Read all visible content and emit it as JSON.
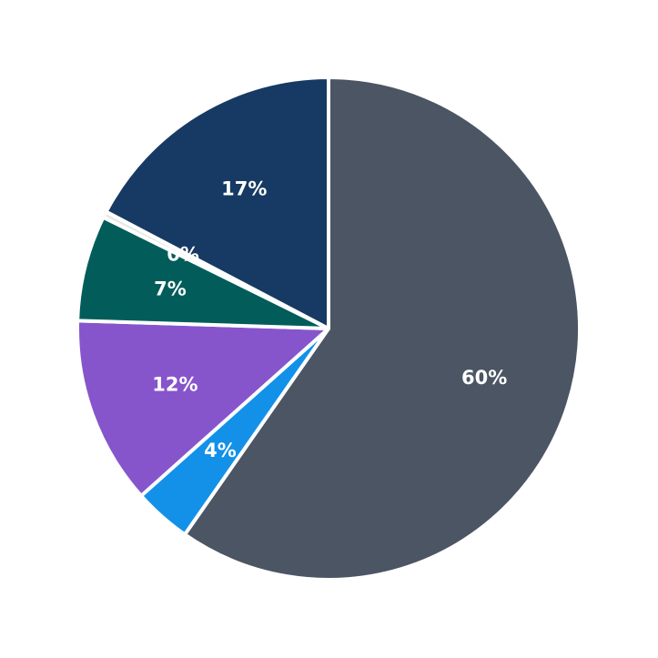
{
  "chart_data": {
    "type": "pie",
    "start": "top",
    "direction": "clockwise",
    "slices": [
      {
        "value": 59.7,
        "label": "60%",
        "color": "#4b5563"
      },
      {
        "value": 3.7,
        "label": "4%",
        "color": "#1391e8"
      },
      {
        "value": 12.1,
        "label": "12%",
        "color": "#8655cc"
      },
      {
        "value": 6.8,
        "label": "7%",
        "color": "#025d5a"
      },
      {
        "value": 0.4,
        "label": "0%",
        "color": "#e8e8e8"
      },
      {
        "value": 17.3,
        "label": "17%",
        "color": "#163a63"
      }
    ],
    "legend": "none"
  }
}
